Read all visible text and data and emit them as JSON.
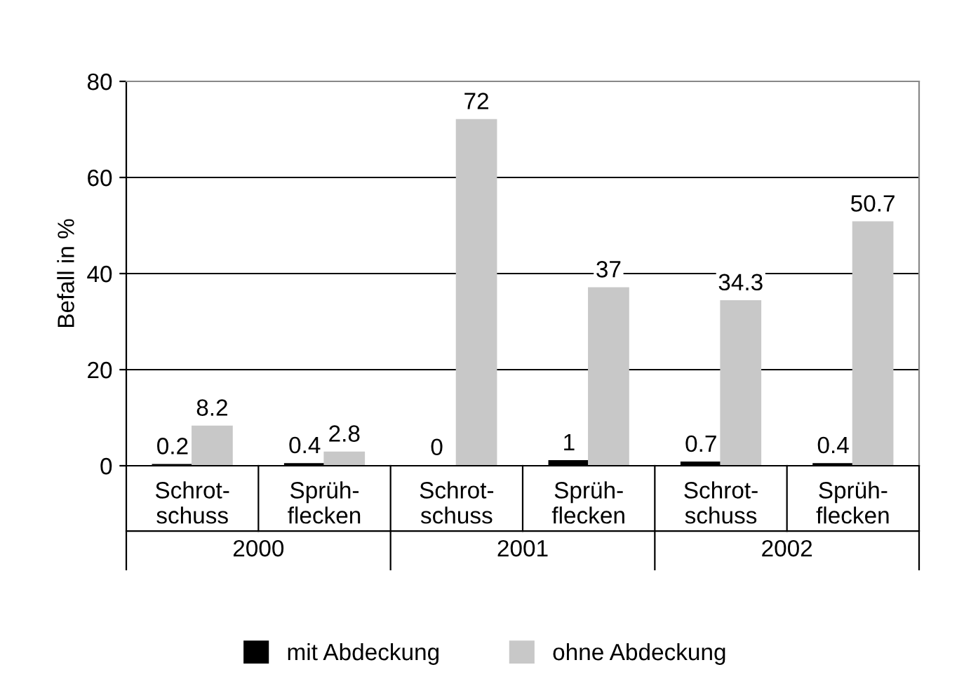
{
  "chart_data": {
    "type": "bar",
    "ylabel": "Befall in %",
    "categories": [
      "Schrot-\nschuss",
      "Sprüh-\nflecken",
      "Schrot-\nschuss",
      "Sprüh-\nflecken",
      "Schrot-\nschuss",
      "Sprüh-\nflecken"
    ],
    "series": [
      {
        "name": "mit Abdeckung",
        "color": "#000000",
        "values": [
          0.2,
          0.4,
          0,
          1,
          0.7,
          0.4
        ]
      },
      {
        "name": "ohne Abdeckung",
        "color": "#c8c8c8",
        "values": [
          8.2,
          2.8,
          72,
          37,
          34.3,
          50.7
        ]
      }
    ],
    "annotations": [
      "2000",
      "2001",
      "2002"
    ],
    "ylim": [
      0,
      80
    ],
    "yticks": [
      0,
      20,
      40,
      60,
      80
    ],
    "grid": "y",
    "legend": "bottom",
    "data_labels": true
  }
}
